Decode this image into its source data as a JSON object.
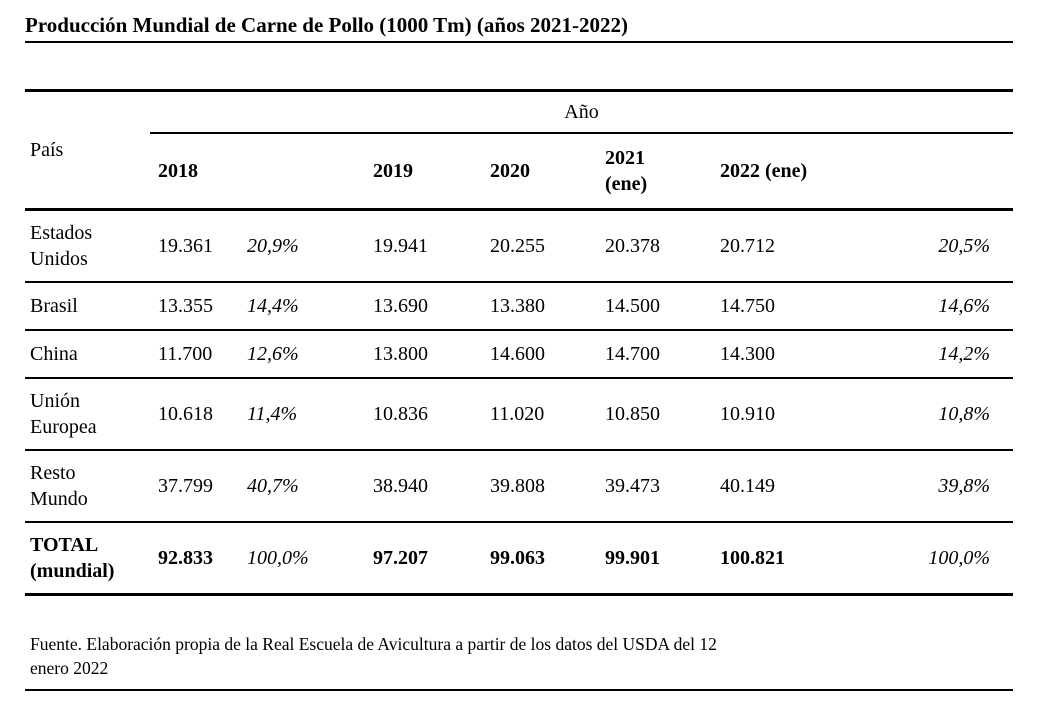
{
  "title": "Producción Mundial de Carne de Pollo (1000 Tm) (años 2021-2022)",
  "table": {
    "corner_header": "País",
    "year_group_header": "Año",
    "year_headers": {
      "y2018": "2018",
      "p2018": "",
      "y2019": "2019",
      "y2020": "2020",
      "y2021": "2021\n(ene)",
      "y2022": "2022 (ene)",
      "p2022": ""
    },
    "rows": [
      {
        "country": "Estados\nUnidos",
        "y2018": "19.361",
        "p2018": "20,9%",
        "y2019": "19.941",
        "y2020": "20.255",
        "y2021": "20.378",
        "y2022": "20.712",
        "p2022": "20,5%"
      },
      {
        "country": "Brasil",
        "y2018": "13.355",
        "p2018": "14,4%",
        "y2019": "13.690",
        "y2020": "13.380",
        "y2021": "14.500",
        "y2022": "14.750",
        "p2022": "14,6%"
      },
      {
        "country": "China",
        "y2018": "11.700",
        "p2018": "12,6%",
        "y2019": "13.800",
        "y2020": "14.600",
        "y2021": "14.700",
        "y2022": "14.300",
        "p2022": "14,2%"
      },
      {
        "country": "Unión\nEuropea",
        "y2018": "10.618",
        "p2018": "11,4%",
        "y2019": "10.836",
        "y2020": "11.020",
        "y2021": "10.850",
        "y2022": "10.910",
        "p2022": "10,8%"
      },
      {
        "country": "Resto\nMundo",
        "y2018": "37.799",
        "p2018": "40,7%",
        "y2019": "38.940",
        "y2020": "39.808",
        "y2021": "39.473",
        "y2022": "40.149",
        "p2022": "39,8%"
      },
      {
        "country": "TOTAL\n(mundial)",
        "y2018": "92.833",
        "p2018": "100,0%",
        "y2019": "97.207",
        "y2020": "99.063",
        "y2021": "99.901",
        "y2022": "100.821",
        "p2022": "100,0%"
      }
    ]
  },
  "footer": "Fuente. Elaboración propia de la Real Escuela de Avicultura a partir de los datos del USDA del 12\nenero 2022"
}
